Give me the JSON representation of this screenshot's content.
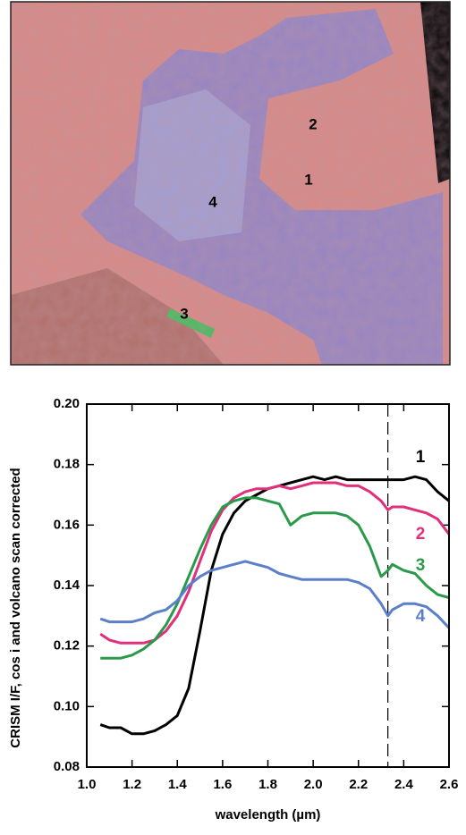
{
  "image": {
    "labels": [
      "2",
      "1",
      "4",
      "3"
    ]
  },
  "chart_data": {
    "type": "line",
    "ylabel": "CRISM I/F, cos i and volcano scan corrected",
    "xlabel": "wavelength (µm)",
    "x": [
      1.06,
      1.1,
      1.15,
      1.2,
      1.25,
      1.3,
      1.35,
      1.4,
      1.45,
      1.5,
      1.55,
      1.6,
      1.65,
      1.7,
      1.75,
      1.8,
      1.85,
      1.9,
      1.95,
      2.0,
      2.05,
      2.1,
      2.15,
      2.2,
      2.25,
      2.3,
      2.33,
      2.35,
      2.4,
      2.45,
      2.5,
      2.55,
      2.6
    ],
    "series": [
      {
        "name": "1",
        "color": "#000000",
        "values": [
          0.094,
          0.093,
          0.093,
          0.091,
          0.091,
          0.092,
          0.094,
          0.097,
          0.106,
          0.125,
          0.145,
          0.157,
          0.164,
          0.168,
          0.17,
          0.172,
          0.173,
          0.174,
          0.175,
          0.176,
          0.175,
          0.176,
          0.175,
          0.175,
          0.175,
          0.175,
          0.175,
          0.175,
          0.175,
          0.176,
          0.175,
          0.171,
          0.168
        ]
      },
      {
        "name": "2",
        "color": "#e0307a",
        "values": [
          0.124,
          0.122,
          0.121,
          0.121,
          0.121,
          0.122,
          0.125,
          0.13,
          0.138,
          0.148,
          0.158,
          0.165,
          0.169,
          0.171,
          0.172,
          0.172,
          0.173,
          0.172,
          0.173,
          0.174,
          0.174,
          0.174,
          0.173,
          0.173,
          0.171,
          0.168,
          0.165,
          0.166,
          0.166,
          0.165,
          0.164,
          0.162,
          0.157
        ]
      },
      {
        "name": "3",
        "color": "#2a9a4a",
        "values": [
          0.116,
          0.116,
          0.116,
          0.117,
          0.119,
          0.122,
          0.127,
          0.134,
          0.143,
          0.152,
          0.16,
          0.166,
          0.168,
          0.169,
          0.169,
          0.168,
          0.167,
          0.16,
          0.163,
          0.164,
          0.164,
          0.164,
          0.163,
          0.16,
          0.153,
          0.143,
          0.145,
          0.147,
          0.145,
          0.144,
          0.14,
          0.137,
          0.136
        ]
      },
      {
        "name": "4",
        "color": "#5b7fc8",
        "values": [
          0.129,
          0.128,
          0.128,
          0.128,
          0.129,
          0.131,
          0.132,
          0.135,
          0.14,
          0.143,
          0.145,
          0.146,
          0.147,
          0.148,
          0.147,
          0.146,
          0.144,
          0.143,
          0.142,
          0.142,
          0.142,
          0.142,
          0.142,
          0.141,
          0.139,
          0.134,
          0.13,
          0.132,
          0.134,
          0.134,
          0.133,
          0.13,
          0.126
        ]
      }
    ],
    "reference_line": 2.33,
    "xlim": [
      1.0,
      2.6
    ],
    "xticks": [
      {
        "value": 1.0,
        "label": "1.0"
      },
      1.2,
      1.4,
      1.6,
      1.8,
      {
        "value": 2.0,
        "label": "2.0"
      },
      2.2,
      2.4,
      2.6
    ],
    "ylim": [
      0.08,
      0.2
    ],
    "yticks": [
      0.08,
      {
        "value": 0.1,
        "label": "0.10"
      },
      0.12,
      0.14,
      0.16,
      0.18,
      {
        "value": 0.2,
        "label": "0.20"
      }
    ]
  }
}
